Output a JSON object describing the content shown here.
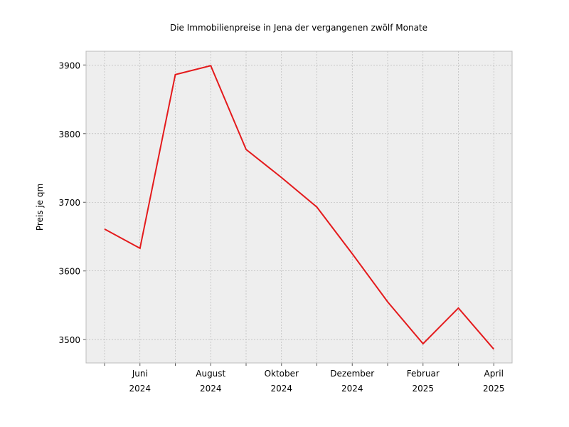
{
  "chart_data": {
    "type": "line",
    "title": "Die Immobilienpreise in Jena der vergangenen zwölf Monate",
    "xlabel": "",
    "ylabel": "Preis je qm",
    "x": [
      "2024-05",
      "2024-06",
      "2024-07",
      "2024-08",
      "2024-09",
      "2024-10",
      "2024-11",
      "2024-12",
      "2025-01",
      "2025-02",
      "2025-03",
      "2025-04"
    ],
    "series": [
      {
        "values": [
          3661,
          3633,
          3886,
          3899,
          3777,
          3736,
          3693,
          3625,
          3555,
          3494,
          3546,
          3486
        ]
      }
    ],
    "ylim": [
      3466,
      3920
    ],
    "y_ticks": [
      3500,
      3600,
      3700,
      3800,
      3900
    ],
    "x_ticks": [
      {
        "x": "2024-06",
        "line1": "Juni",
        "line2": "2024"
      },
      {
        "x": "2024-08",
        "line1": "August",
        "line2": "2024"
      },
      {
        "x": "2024-10",
        "line1": "Oktober",
        "line2": "2024"
      },
      {
        "x": "2024-12",
        "line1": "Dezember",
        "line2": "2024"
      },
      {
        "x": "2025-02",
        "line1": "Februar",
        "line2": "2025"
      },
      {
        "x": "2025-04",
        "line1": "April",
        "line2": "2025"
      }
    ],
    "grid": true,
    "colors": {
      "line": "#e41a1c",
      "plot_bg": "#eeeeee",
      "grid": "#b0b0b0",
      "frame": "#bcbcbc"
    }
  }
}
